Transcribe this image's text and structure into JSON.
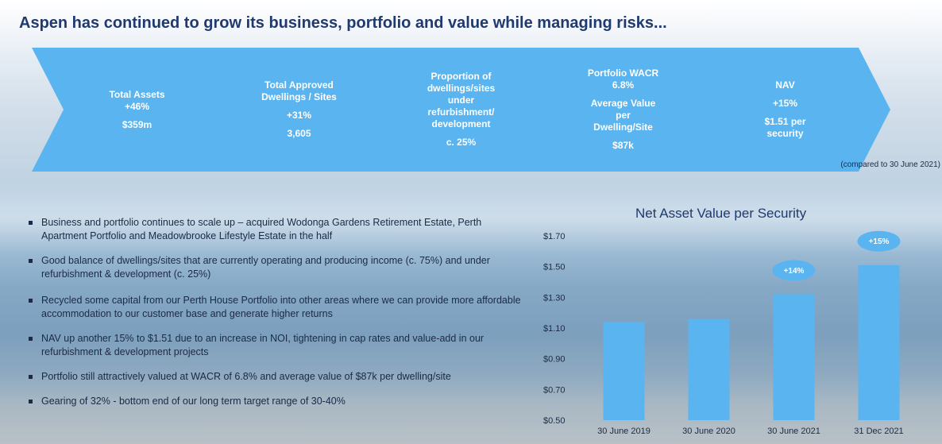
{
  "title": "Aspen has continued to grow its business, portfolio and value while managing risks...",
  "chevrons": [
    {
      "lines": [
        "Total Assets",
        "+46%",
        "",
        "$359m"
      ]
    },
    {
      "lines": [
        "Total Approved",
        "Dwellings / Sites",
        "",
        "+31%",
        "",
        "3,605"
      ]
    },
    {
      "lines": [
        "Proportion of",
        "dwellings/sites",
        "under",
        "refurbishment/",
        "development",
        "",
        "c. 25%"
      ]
    },
    {
      "lines": [
        "Portfolio WACR",
        "6.8%",
        "",
        "Average Value",
        "per",
        "Dwelling/Site",
        "",
        "$87k"
      ]
    },
    {
      "lines": [
        "NAV",
        "",
        "+15%",
        "",
        "$1.51 per",
        "security"
      ]
    }
  ],
  "footnote": "(compared to 30 June 2021)",
  "bullets": [
    "Business and portfolio continues to scale up – acquired Wodonga Gardens Retirement Estate, Perth Apartment Portfolio and Meadowbrooke Lifestyle Estate in the half",
    "Good balance of dwellings/sites that are currently operating and producing income (c. 75%) and under refurbishment & development (c. 25%)",
    "Recycled some capital from our Perth House Portfolio into other areas where we can provide more affordable accommodation to our customer base and generate higher returns",
    "NAV up another 15% to $1.51 due to an increase in NOI, tightening in cap rates and value-add in our refurbishment & development projects",
    "Portfolio still attractively valued at WACR of 6.8% and average value of $87k per dwelling/site",
    "Gearing of 32% - bottom end of our long term target range of 30-40%"
  ],
  "chart_data": {
    "type": "bar",
    "title": "Net Asset Value per Security",
    "categories": [
      "30 June 2019",
      "30 June 2020",
      "30 June 2021",
      "31 Dec 2021"
    ],
    "values": [
      1.14,
      1.16,
      1.32,
      1.51
    ],
    "ylim": [
      0.5,
      1.7
    ],
    "yticks": [
      "$1.70",
      "$1.50",
      "$1.30",
      "$1.10",
      "$0.90",
      "$0.70",
      "$0.50"
    ],
    "ytick_values": [
      1.7,
      1.5,
      1.3,
      1.1,
      0.9,
      0.7,
      0.5
    ],
    "annotations": [
      {
        "category": "30 June 2021",
        "text": "+14%"
      },
      {
        "category": "31 Dec 2021",
        "text": "+15%"
      }
    ],
    "bar_color": "#5ab4ef",
    "grid": false
  }
}
